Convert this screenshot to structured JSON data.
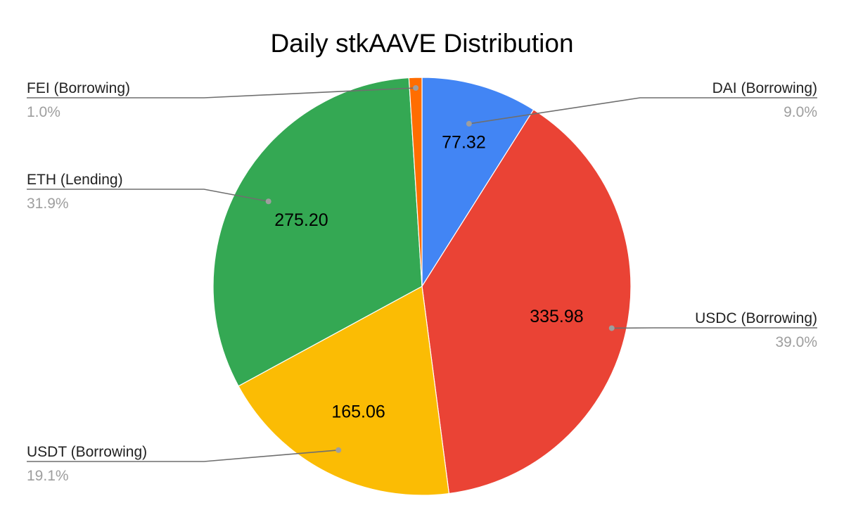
{
  "chart_data": {
    "type": "pie",
    "title": "Daily stkAAVE Distribution",
    "slices": [
      {
        "label": "DAI (Borrowing)",
        "value": 77.32,
        "value_label": "77.32",
        "percent_label": "9.0%",
        "color": "#4285f4"
      },
      {
        "label": "USDC (Borrowing)",
        "value": 335.98,
        "value_label": "335.98",
        "percent_label": "39.0%",
        "color": "#ea4335"
      },
      {
        "label": "USDT (Borrowing)",
        "value": 165.06,
        "value_label": "165.06",
        "percent_label": "19.1%",
        "color": "#fbbc04"
      },
      {
        "label": "ETH (Lending)",
        "value": 275.2,
        "value_label": "275.20",
        "percent_label": "31.9%",
        "color": "#34a853"
      },
      {
        "label": "FEI (Borrowing)",
        "value": 8.62,
        "value_label": "",
        "percent_label": "1.0%",
        "color": "#ff6d01"
      }
    ],
    "start_angle": "12 o'clock",
    "direction": "clockwise",
    "legend": "none"
  }
}
